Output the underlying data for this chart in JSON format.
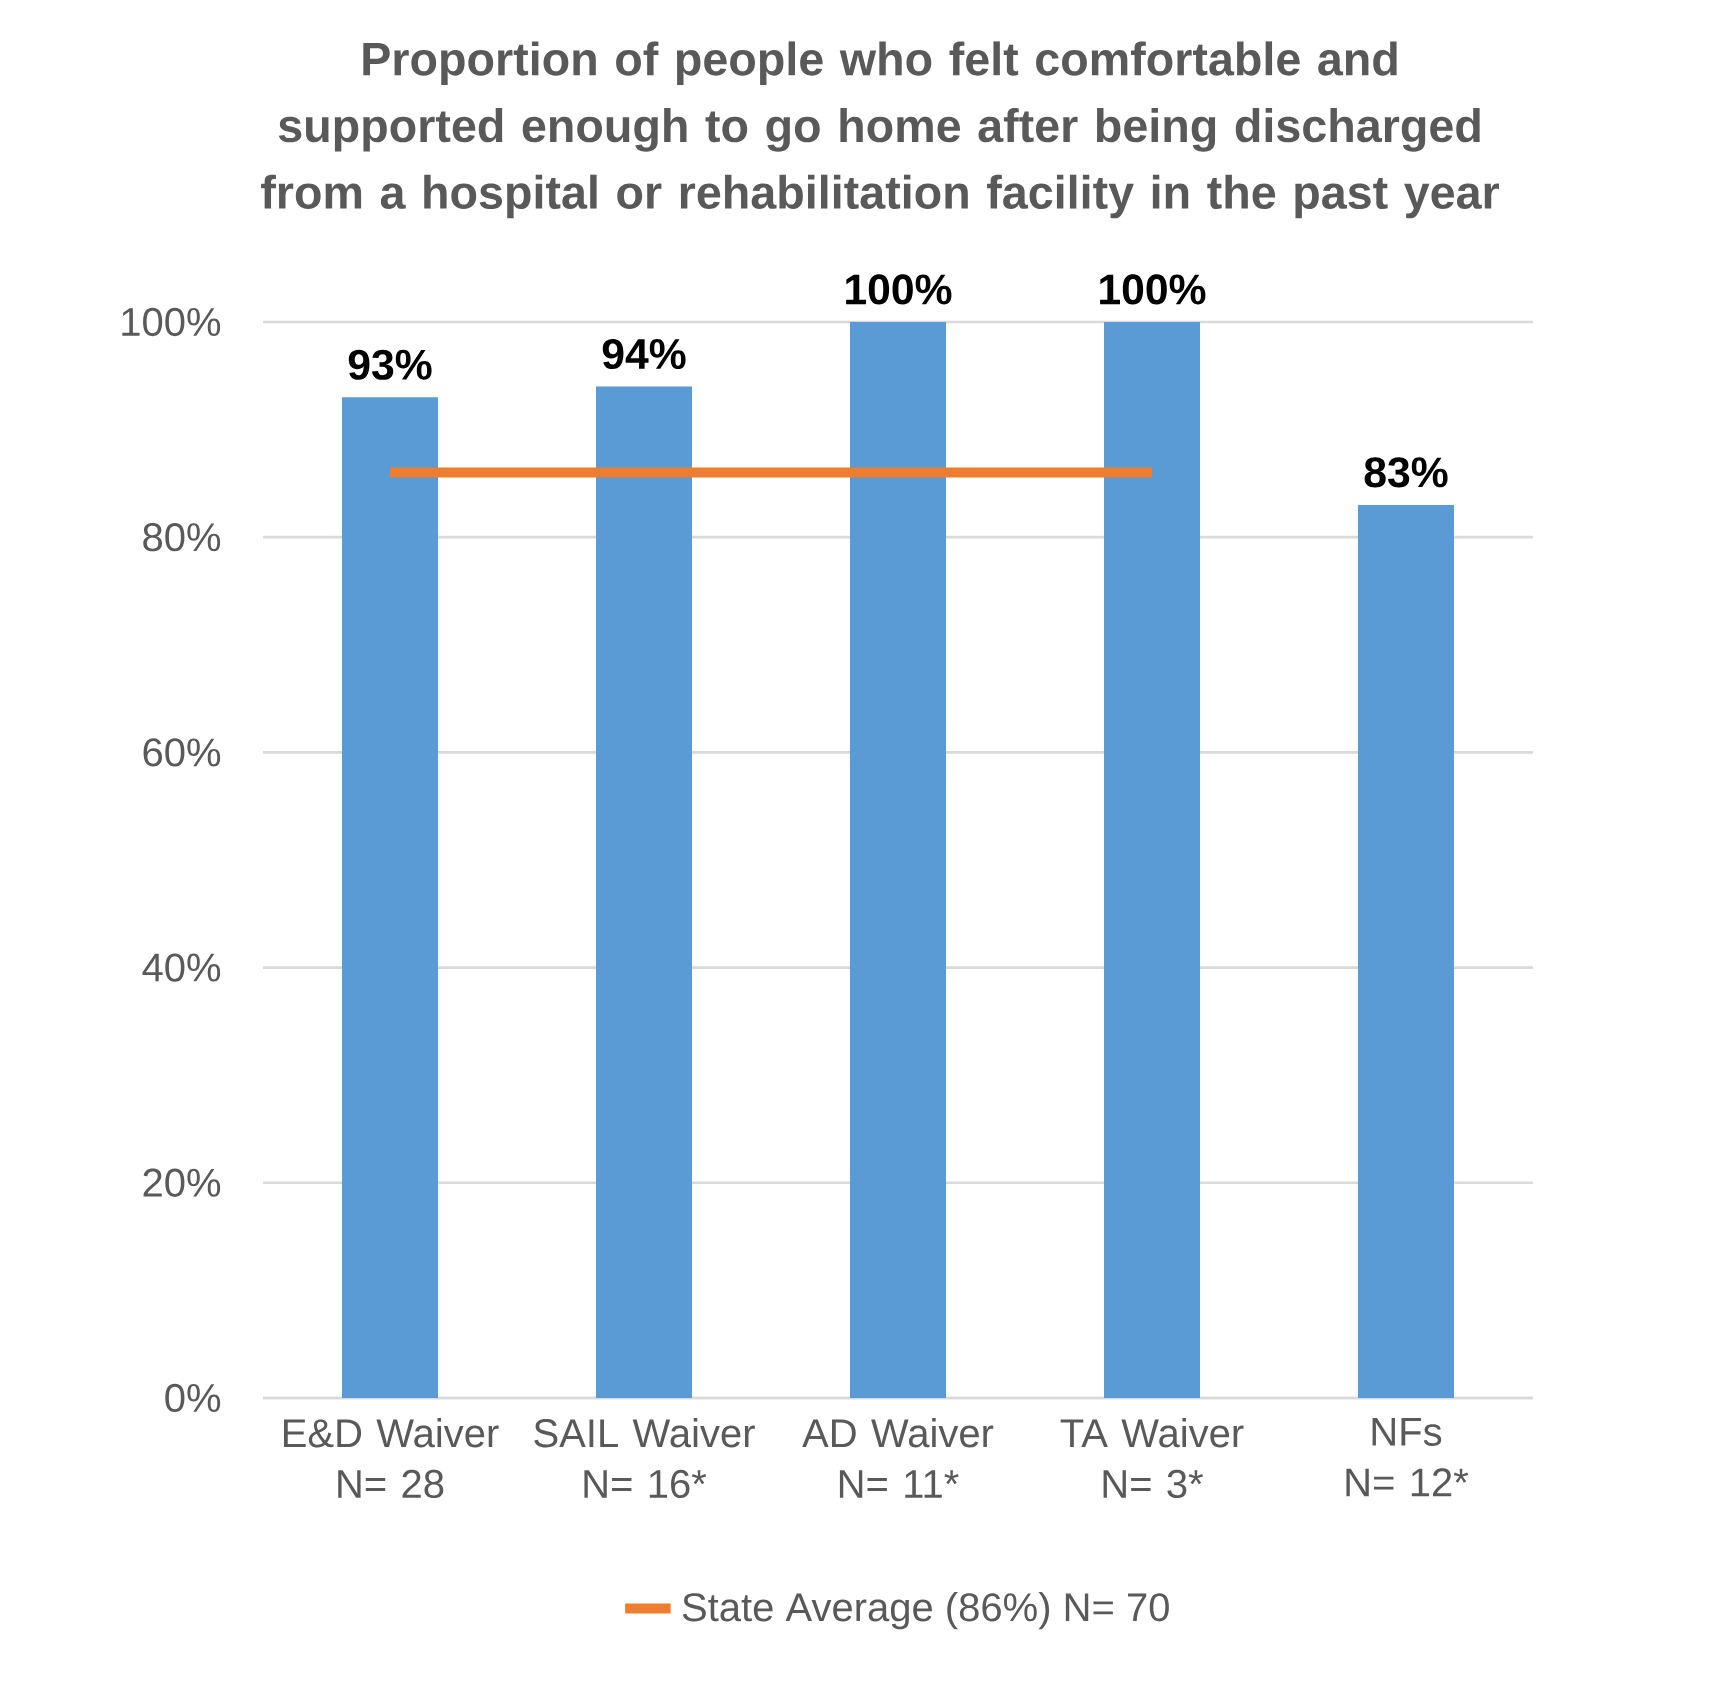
{
  "chart_data": {
    "type": "bar",
    "title": "Proportion of people who felt comfortable and\nsupported enough to go home after being discharged\nfrom a hospital or rehabilitation facility in the past year",
    "categories": [
      "E&D Waiver\nN= 28",
      "SAIL Waiver\nN= 16*",
      "AD Waiver\nN= 11*",
      "TA Waiver\nN= 3*",
      "NFs\nN= 12*"
    ],
    "series": [
      {
        "color": "#5b9bd5",
        "values": [
          93,
          94,
          100,
          100,
          83
        ],
        "value_labels": [
          "93%",
          "94%",
          "100%",
          "100%",
          "83%"
        ]
      },
      {
        "type": "line",
        "name": "State Average (86%) N= 70",
        "color": "#ed7d31",
        "values": [
          86,
          86,
          86,
          86,
          null
        ]
      }
    ],
    "ylim": [
      0,
      100
    ],
    "yticks": [
      {
        "value": 0,
        "label": "0%"
      },
      {
        "value": 20,
        "label": "20%"
      },
      {
        "value": 40,
        "label": "40%"
      },
      {
        "value": 60,
        "label": "60%"
      },
      {
        "value": 80,
        "label": "80%"
      },
      {
        "value": 100,
        "label": "100%"
      }
    ],
    "grid": "y",
    "legend": "bottom",
    "marker": "none",
    "line_style": "solid"
  }
}
